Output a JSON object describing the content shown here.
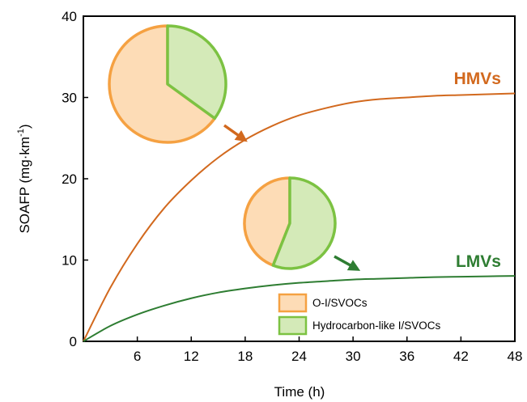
{
  "chart_data": {
    "type": "line",
    "xlabel": "Time (h)",
    "ylabel": "SOAFP (mg·km⁻¹)",
    "ylabel_main": "SOAFP (mg·km",
    "ylabel_sup": "-1",
    "ylabel_close": ")",
    "xlim": [
      0,
      48
    ],
    "ylim": [
      0,
      40
    ],
    "x_ticks": [
      6,
      12,
      18,
      24,
      30,
      36,
      42,
      48
    ],
    "y_ticks": [
      0,
      10,
      20,
      30,
      40
    ],
    "grid": false,
    "series": [
      {
        "name": "HMVs",
        "color": "#d2691e",
        "x": [
          0,
          3,
          6,
          9,
          12,
          15,
          18,
          21,
          24,
          27,
          30,
          33,
          36,
          39,
          42,
          45,
          48
        ],
        "y": [
          0,
          6.6,
          12.0,
          16.4,
          19.8,
          22.6,
          24.8,
          26.5,
          27.8,
          28.7,
          29.4,
          29.8,
          30.0,
          30.2,
          30.3,
          30.4,
          30.5
        ]
      },
      {
        "name": "LMVs",
        "color": "#2e7d32",
        "x": [
          0,
          3,
          6,
          9,
          12,
          15,
          18,
          21,
          24,
          27,
          30,
          33,
          36,
          39,
          42,
          45,
          48
        ],
        "y": [
          0,
          1.9,
          3.3,
          4.4,
          5.3,
          6.0,
          6.5,
          6.9,
          7.2,
          7.4,
          7.6,
          7.7,
          7.8,
          7.9,
          7.95,
          8.0,
          8.05
        ]
      }
    ],
    "pies": [
      {
        "for_series": "HMVs",
        "slices": [
          {
            "name": "O-I/SVOCs",
            "fraction": 0.65
          },
          {
            "name": "Hydrocarbon-like I/SVOCs",
            "fraction": 0.35
          }
        ]
      },
      {
        "for_series": "LMVs",
        "slices": [
          {
            "name": "O-I/SVOCs",
            "fraction": 0.44
          },
          {
            "name": "Hydrocarbon-like I/SVOCs",
            "fraction": 0.56
          }
        ]
      }
    ],
    "legend": {
      "placement": "bottom-right",
      "items": [
        {
          "label": "O-I/SVOCs",
          "fill": "#fddcb6",
          "stroke": "#f5a142"
        },
        {
          "label": "Hydrocarbon-like I/SVOCs",
          "fill": "#d4eab8",
          "stroke": "#7cc242"
        }
      ]
    }
  }
}
